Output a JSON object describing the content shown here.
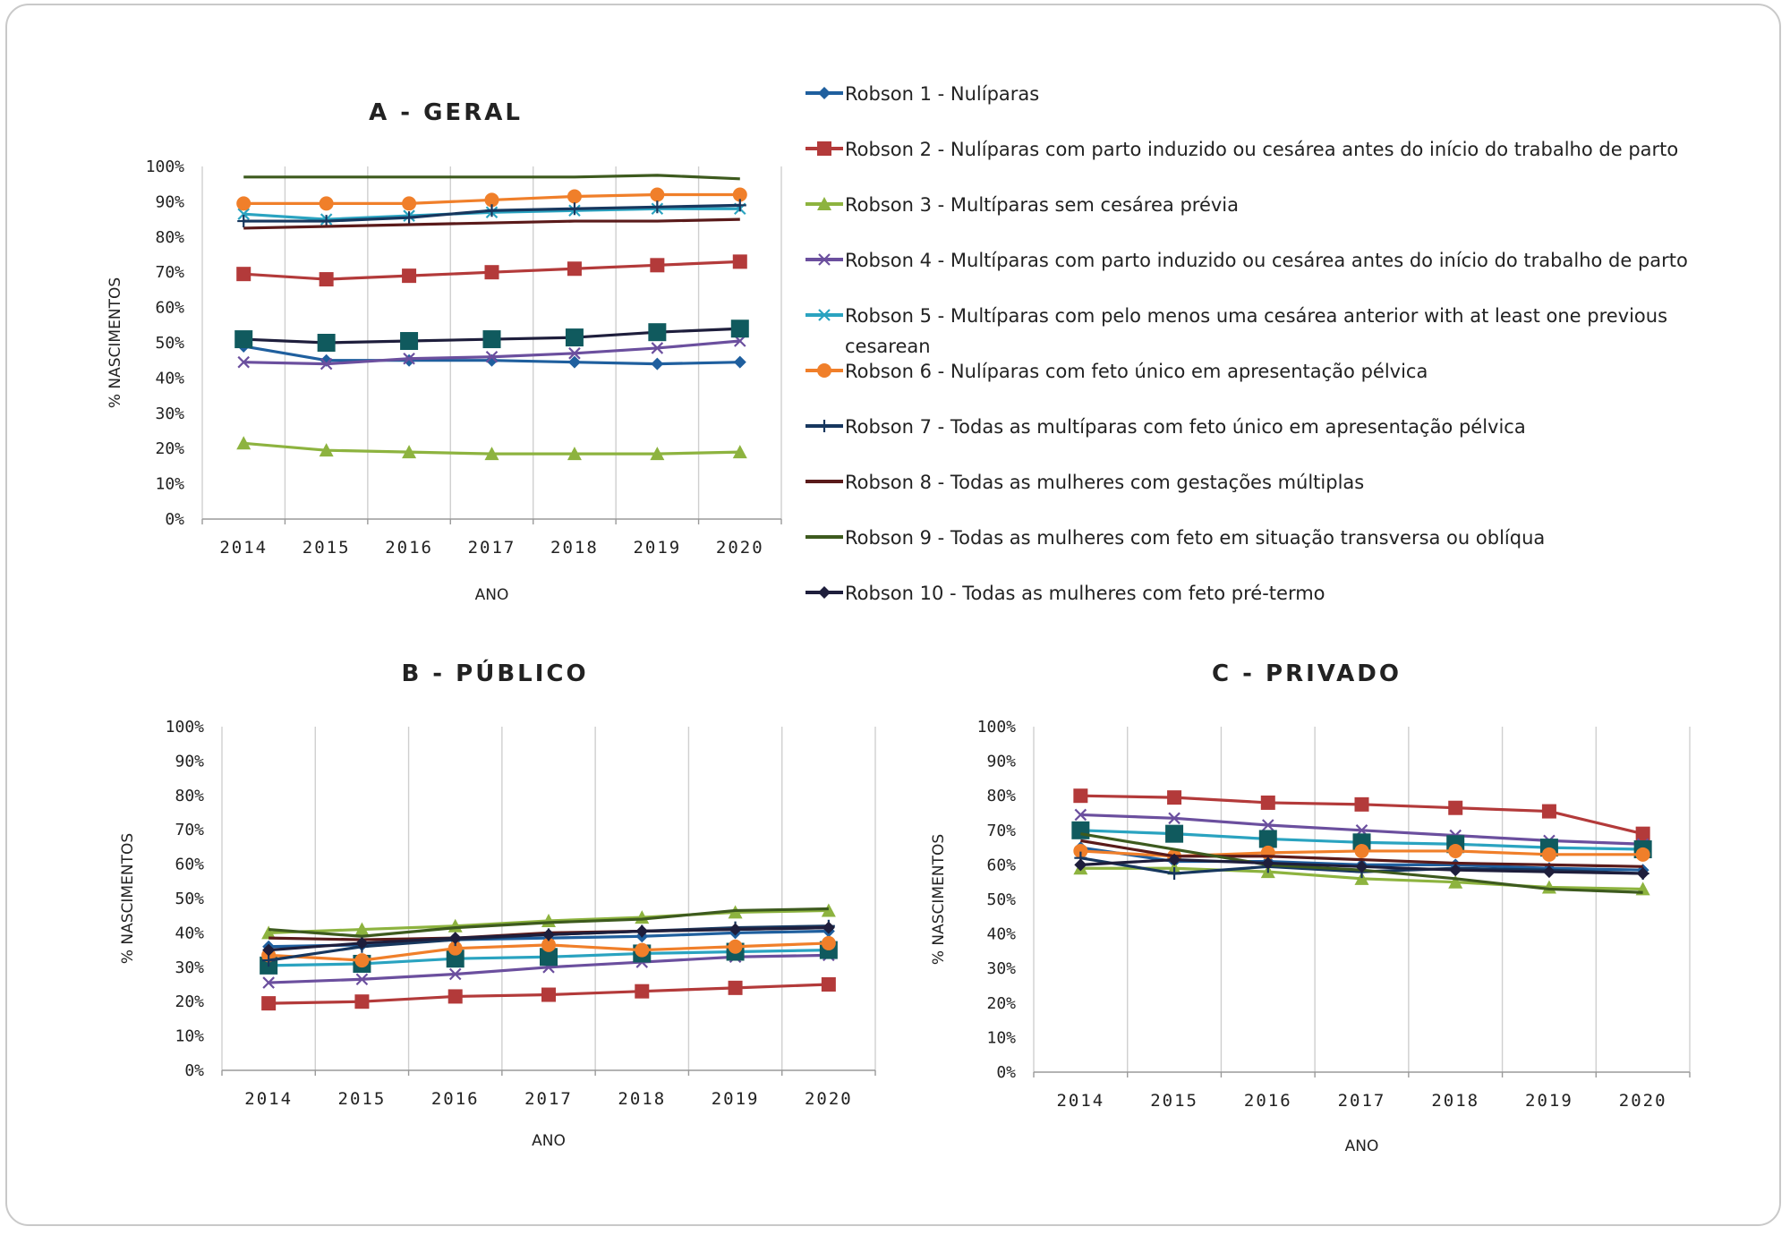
{
  "chart_data": [
    {
      "id": "geral",
      "type": "line",
      "title": "A - GERAL",
      "xlabel": "ANO",
      "ylabel": "% NASCIMENTOS",
      "ylim": [
        0,
        100
      ],
      "yticks": [
        "0%",
        "10%",
        "20%",
        "30%",
        "40%",
        "50%",
        "60%",
        "70%",
        "80%",
        "90%",
        "100%"
      ],
      "categories": [
        "2014",
        "2015",
        "2016",
        "2017",
        "2018",
        "2019",
        "2020"
      ],
      "series": [
        {
          "name": "Robson 1",
          "values": [
            49,
            45,
            45,
            45,
            44.5,
            44,
            44.5
          ]
        },
        {
          "name": "Robson 2",
          "values": [
            69.5,
            68,
            69,
            70,
            71,
            72,
            73
          ]
        },
        {
          "name": "Robson 3",
          "values": [
            21.5,
            19.5,
            19,
            18.5,
            18.5,
            18.5,
            19
          ]
        },
        {
          "name": "Robson 4",
          "values": [
            44.5,
            44,
            45.5,
            46,
            47,
            48.5,
            50.5
          ]
        },
        {
          "name": "Robson 5",
          "values": [
            86.5,
            85,
            86,
            87,
            87.5,
            88,
            88
          ]
        },
        {
          "name": "Robson 6",
          "values": [
            89.5,
            89.5,
            89.5,
            90.5,
            91.5,
            92,
            92
          ]
        },
        {
          "name": "Robson 7",
          "values": [
            84.5,
            84.5,
            85.5,
            87.5,
            88,
            88.5,
            89
          ]
        },
        {
          "name": "Robson 8",
          "values": [
            82.5,
            83,
            83.5,
            84,
            84.5,
            84.5,
            85
          ]
        },
        {
          "name": "Robson 9",
          "values": [
            97,
            97,
            97,
            97,
            97,
            97.5,
            96.5
          ]
        },
        {
          "name": "Robson 10",
          "values": [
            51,
            50,
            50.5,
            51,
            51.5,
            53,
            54
          ]
        }
      ]
    },
    {
      "id": "publico",
      "type": "line",
      "title": "B - PÚBLICO",
      "xlabel": "ANO",
      "ylabel": "% NASCIMENTOS",
      "ylim": [
        0,
        100
      ],
      "yticks": [
        "0%",
        "10%",
        "20%",
        "30%",
        "40%",
        "50%",
        "60%",
        "70%",
        "80%",
        "90%",
        "100%"
      ],
      "categories": [
        "2014",
        "2015",
        "2016",
        "2017",
        "2018",
        "2019",
        "2020"
      ],
      "series": [
        {
          "name": "Robson 1",
          "values": [
            36,
            36.5,
            38,
            38.5,
            39,
            40,
            40.5
          ]
        },
        {
          "name": "Robson 2",
          "values": [
            19.5,
            20,
            21.5,
            22,
            23,
            24,
            25
          ]
        },
        {
          "name": "Robson 3",
          "values": [
            40,
            41,
            42,
            43.5,
            44.5,
            46,
            46.5
          ]
        },
        {
          "name": "Robson 4",
          "values": [
            25.5,
            26.5,
            28,
            30,
            31.5,
            33,
            33.5
          ]
        },
        {
          "name": "Robson 5",
          "values": [
            30.5,
            31,
            32.5,
            33,
            34,
            34.5,
            35
          ]
        },
        {
          "name": "Robson 6",
          "values": [
            33.5,
            32,
            35.5,
            36.5,
            35,
            36,
            37
          ]
        },
        {
          "name": "Robson 7",
          "values": [
            32,
            36,
            38,
            39.5,
            40.5,
            41.5,
            42
          ]
        },
        {
          "name": "Robson 8",
          "values": [
            38.5,
            38,
            38.5,
            40,
            40.5,
            41,
            41.5
          ]
        },
        {
          "name": "Robson 9",
          "values": [
            41,
            39,
            41.5,
            43,
            44,
            46.5,
            47
          ]
        },
        {
          "name": "Robson 10",
          "values": [
            35,
            37,
            38.5,
            39.5,
            40.5,
            41,
            41.5
          ]
        }
      ]
    },
    {
      "id": "privado",
      "type": "line",
      "title": "C - PRIVADO",
      "xlabel": "ANO",
      "ylabel": "% NASCIMENTOS",
      "ylim": [
        0,
        100
      ],
      "yticks": [
        "0%",
        "10%",
        "20%",
        "30%",
        "40%",
        "50%",
        "60%",
        "70%",
        "80%",
        "90%",
        "100%"
      ],
      "categories": [
        "2014",
        "2015",
        "2016",
        "2017",
        "2018",
        "2019",
        "2020"
      ],
      "series": [
        {
          "name": "Robson 1",
          "values": [
            65,
            61,
            61,
            60,
            60,
            59,
            58.5
          ]
        },
        {
          "name": "Robson 2",
          "values": [
            80,
            79.5,
            78,
            77.5,
            76.5,
            75.5,
            69
          ]
        },
        {
          "name": "Robson 3",
          "values": [
            59,
            59,
            58,
            56,
            55,
            53.5,
            53
          ]
        },
        {
          "name": "Robson 4",
          "values": [
            74.5,
            73.5,
            71.5,
            70,
            68.5,
            67,
            66
          ]
        },
        {
          "name": "Robson 5",
          "values": [
            70,
            69,
            67.5,
            66.5,
            66,
            65,
            64.5
          ]
        },
        {
          "name": "Robson 6",
          "values": [
            64,
            62.5,
            63.5,
            64,
            64,
            63,
            63
          ]
        },
        {
          "name": "Robson 7",
          "values": [
            62,
            57.5,
            59.5,
            58,
            59,
            58.5,
            57.5
          ]
        },
        {
          "name": "Robson 8",
          "values": [
            67,
            62.5,
            62.5,
            61.5,
            60.5,
            60,
            59.5
          ]
        },
        {
          "name": "Robson 9",
          "values": [
            69,
            64.5,
            60,
            58.5,
            56,
            53,
            52
          ]
        },
        {
          "name": "Robson 10",
          "values": [
            60,
            61.5,
            60.5,
            59.5,
            58.5,
            58,
            57.5
          ]
        }
      ]
    }
  ],
  "legend": [
    {
      "name": "Robson 1",
      "color": "#1f5f9e",
      "marker": "diamond",
      "lines": [
        "Robson 1 - Nulíparas"
      ]
    },
    {
      "name": "Robson 2",
      "color": "#b33a3a",
      "marker": "square",
      "lines": [
        "Robson 2 - Nulíparas com parto induzido ou cesárea antes do início do trabalho de parto"
      ]
    },
    {
      "name": "Robson 3",
      "color": "#8db33f",
      "marker": "triangle",
      "lines": [
        "Robson 3 - Multíparas sem cesárea prévia"
      ]
    },
    {
      "name": "Robson 4",
      "color": "#6b4f9e",
      "marker": "x",
      "lines": [
        "Robson 4 - Multíparas com parto induzido ou cesárea antes do início do trabalho de parto"
      ]
    },
    {
      "name": "Robson 5",
      "color": "#2aa3c0",
      "marker": "xbar",
      "lines": [
        "Robson 5 - Multíparas com pelo menos uma cesárea anterior with at least one previous",
        "cesarean"
      ]
    },
    {
      "name": "Robson 6",
      "color": "#f07f2a",
      "marker": "circle",
      "lines": [
        "Robson 6 - Nulíparas com feto único em apresentação pélvica"
      ]
    },
    {
      "name": "Robson 7",
      "color": "#17375e",
      "marker": "plus",
      "lines": [
        "Robson 7 - Todas as multíparas com feto único em apresentação pélvica"
      ]
    },
    {
      "name": "Robson 8",
      "color": "#5a1a1a",
      "marker": "none",
      "lines": [
        "Robson 8 - Todas as mulheres com gestações múltiplas"
      ]
    },
    {
      "name": "Robson 9",
      "color": "#3d5a1e",
      "marker": "none",
      "lines": [
        "Robson 9 - Todas as mulheres com feto em situação transversa ou oblíqua"
      ]
    },
    {
      "name": "Robson 10",
      "color": "#1e1e3c",
      "marker": "diamond",
      "lines": [
        "Robson 10 - Todas as mulheres com feto pré-termo"
      ]
    }
  ],
  "emphasis_series": {
    "geral": "Robson 10",
    "publico": "Robson 5",
    "privado": "Robson 5"
  },
  "emphasis_marker": {
    "marker": "bigsquare",
    "color": "#105a5e"
  }
}
